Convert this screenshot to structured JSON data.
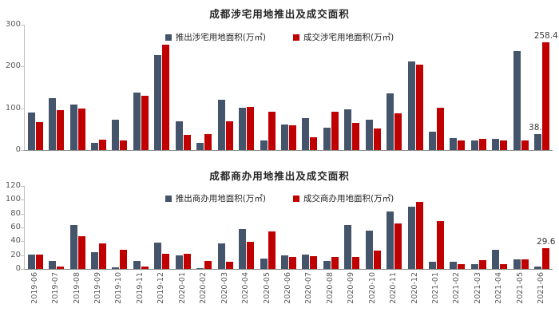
{
  "chart_data": [
    {
      "type": "bar",
      "title": "成都涉宅用地推出及成交面积",
      "categories": [
        "2019-06",
        "2019-07",
        "2019-08",
        "2019-09",
        "2019-10",
        "2019-11",
        "2019-12",
        "2020-01",
        "2020-02",
        "2020-03",
        "2020-04",
        "2020-05",
        "2020-06",
        "2020-07",
        "2020-08",
        "2020-09",
        "2020-10",
        "2020-11",
        "2020-12",
        "2021-01",
        "2021-02",
        "2021-03",
        "2021-04",
        "2021-05",
        "2021-06"
      ],
      "series": [
        {
          "name": "推出涉宅用地面积(万㎡)",
          "color": "#44546A",
          "values": [
            90,
            124,
            108,
            17,
            72,
            137,
            228,
            68,
            18,
            121,
            101,
            23,
            62,
            76,
            53,
            98,
            72,
            136,
            213,
            44,
            29,
            23,
            27,
            236,
            38.1
          ]
        },
        {
          "name": "成交涉宅用地面积(万㎡)",
          "color": "#C00000",
          "values": [
            67,
            95,
            100,
            25,
            23,
            130,
            252,
            36,
            38,
            68,
            104,
            92,
            60,
            31,
            92,
            65,
            52,
            88,
            205,
            101,
            22,
            27,
            22,
            22,
            258.4
          ]
        }
      ],
      "ylim": [
        0,
        300
      ],
      "y_ticks": [
        0,
        100,
        200,
        300
      ],
      "legend_position": "top",
      "grid": false,
      "show_x_labels": false,
      "value_labels": [
        {
          "series": 0,
          "index": 24,
          "text": "38.1"
        },
        {
          "series": 1,
          "index": 24,
          "text": "258.4"
        }
      ]
    },
    {
      "type": "bar",
      "title": "成都商办用地推出及成交面积",
      "categories": [
        "2019-06",
        "2019-07",
        "2019-08",
        "2019-09",
        "2019-10",
        "2019-11",
        "2019-12",
        "2020-01",
        "2020-02",
        "2020-03",
        "2020-04",
        "2020-05",
        "2020-06",
        "2020-07",
        "2020-08",
        "2020-09",
        "2020-10",
        "2020-11",
        "2020-12",
        "2021-01",
        "2021-02",
        "2021-03",
        "2021-04",
        "2021-05",
        "2021-06"
      ],
      "series": [
        {
          "name": "推出商办用地面积(万㎡)",
          "color": "#44546A",
          "values": [
            21,
            11,
            63,
            24,
            2,
            12,
            38,
            20,
            1,
            37,
            58,
            15,
            20,
            21,
            12,
            64,
            55,
            83,
            90,
            10,
            10,
            7,
            28,
            14,
            4
          ]
        },
        {
          "name": "成交商办用地面积(万㎡)",
          "color": "#C00000",
          "values": [
            21,
            4,
            47,
            37,
            28,
            3,
            22,
            22,
            12,
            10,
            39,
            54,
            17,
            19,
            17,
            17,
            27,
            66,
            97,
            69,
            7,
            13,
            7,
            14,
            29.6
          ]
        }
      ],
      "ylim": [
        0,
        120
      ],
      "y_ticks": [
        0,
        20,
        40,
        60,
        80,
        100,
        120
      ],
      "legend_position": "top",
      "grid": false,
      "show_x_labels": true,
      "value_labels": [
        {
          "series": 1,
          "index": 24,
          "text": "29.6"
        }
      ]
    }
  ]
}
